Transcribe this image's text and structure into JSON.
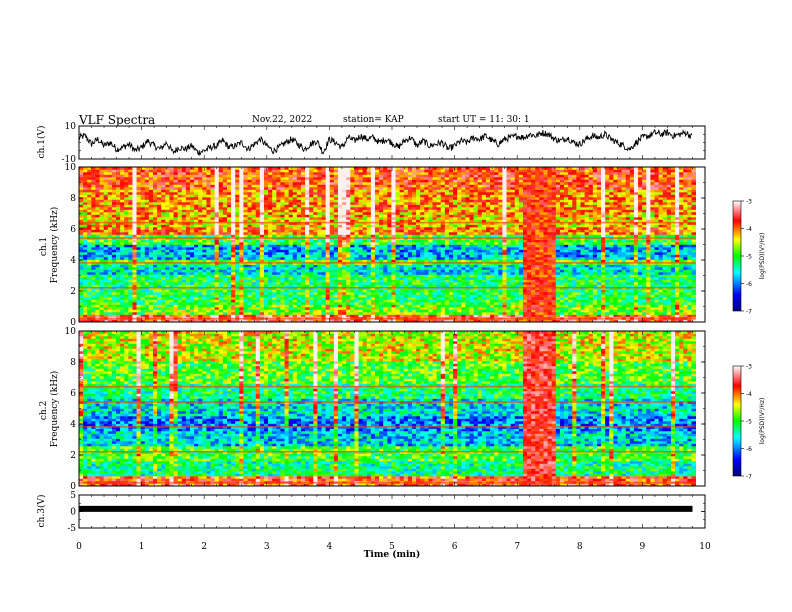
{
  "header": {
    "title": "VLF Spectra",
    "date": "Nov.22, 2022",
    "station": "station= KAP",
    "start_ut": "start  UT =   11: 30: 1"
  },
  "chart_data": [
    {
      "type": "line",
      "panel": "ch1-waveform",
      "ylabel": "ch.1(V)",
      "ylim": [
        -10,
        10
      ],
      "yticks": [
        10,
        -10
      ],
      "xlim": [
        0,
        10
      ],
      "series": [
        {
          "color": "#000000",
          "x": [
            0.0,
            0.1,
            0.2,
            0.3,
            0.4,
            0.5,
            0.6,
            0.7,
            0.8,
            0.9,
            1.0,
            1.1,
            1.2,
            1.3,
            1.4,
            1.5,
            1.6,
            1.7,
            1.8,
            1.9,
            2.0,
            2.1,
            2.2,
            2.3,
            2.4,
            2.5,
            2.6,
            2.7,
            2.8,
            2.9,
            3.0,
            3.1,
            3.2,
            3.3,
            3.4,
            3.5,
            3.6,
            3.7,
            3.8,
            3.9,
            4.0,
            4.1,
            4.2,
            4.3,
            4.4,
            4.5,
            4.6,
            4.7,
            4.8,
            4.9,
            5.0,
            5.1,
            5.2,
            5.3,
            5.4,
            5.5,
            5.6,
            5.7,
            5.8,
            5.9,
            6.0,
            6.1,
            6.2,
            6.3,
            6.4,
            6.5,
            6.6,
            6.7,
            6.8,
            6.9,
            7.0,
            7.1,
            7.2,
            7.3,
            7.4,
            7.5,
            7.6,
            7.7,
            7.8,
            7.9,
            8.0,
            8.1,
            8.2,
            8.3,
            8.4,
            8.5,
            8.6,
            8.7,
            8.8,
            8.9,
            9.0,
            9.1,
            9.2,
            9.3,
            9.4,
            9.5,
            9.6,
            9.7,
            9.8
          ],
          "y": [
            3,
            4,
            -1,
            2,
            -2,
            0,
            -4,
            -3,
            -1,
            -5,
            -3,
            1,
            -2,
            -4,
            0,
            -6,
            -3,
            -4,
            -2,
            -6,
            -5,
            -3,
            -2,
            1,
            -3,
            -2,
            0,
            -4,
            -1,
            2,
            -2,
            -5,
            -3,
            0,
            2,
            -1,
            -4,
            -1,
            1,
            -6,
            2,
            0,
            -3,
            3,
            1,
            4,
            2,
            3,
            0,
            2,
            0,
            -3,
            1,
            3,
            -2,
            1,
            -2,
            -1,
            0,
            -4,
            -2,
            1,
            0,
            3,
            2,
            4,
            1,
            -1,
            2,
            3,
            4,
            3,
            5,
            4,
            6,
            5,
            2,
            1,
            3,
            0,
            -1,
            2,
            4,
            3,
            5,
            2,
            0,
            -2,
            -4,
            0,
            3,
            4,
            6,
            5,
            6,
            4,
            5,
            6,
            3
          ]
        }
      ]
    },
    {
      "type": "heatmap",
      "panel": "ch1-spectrogram",
      "ylabel": "ch.1\nFrequency (kHz)",
      "ylim": [
        0,
        10
      ],
      "yticks": [
        0,
        2,
        4,
        6,
        8,
        10
      ],
      "xlim": [
        0,
        10
      ],
      "colorbar": {
        "label": "log(PSD)(V²/Hz)",
        "range": [
          -7,
          -3
        ],
        "ticks": [
          "-3",
          "-4",
          "-5",
          "-6",
          "-7"
        ],
        "colors": [
          "#000080",
          "#0000ff",
          "#00ffff",
          "#00ff00",
          "#ffff00",
          "#ff0000",
          "#ffffff"
        ]
      },
      "frequency_bands_khz": [
        {
          "from": 0.0,
          "to": 0.4,
          "level": -3.6
        },
        {
          "from": 0.4,
          "to": 1.0,
          "level": -4.8
        },
        {
          "from": 1.0,
          "to": 2.0,
          "level": -5.1
        },
        {
          "from": 2.0,
          "to": 3.0,
          "level": -5.2
        },
        {
          "from": 3.0,
          "to": 3.6,
          "level": -5.6
        },
        {
          "from": 3.6,
          "to": 4.0,
          "level": -4.9
        },
        {
          "from": 4.0,
          "to": 5.0,
          "level": -5.8
        },
        {
          "from": 5.0,
          "to": 5.5,
          "level": -5.0
        },
        {
          "from": 5.5,
          "to": 6.0,
          "level": -4.0
        },
        {
          "from": 6.0,
          "to": 7.0,
          "level": -4.3
        },
        {
          "from": 7.0,
          "to": 8.5,
          "level": -4.1
        },
        {
          "from": 8.5,
          "to": 10.0,
          "level": -3.8
        }
      ],
      "burst_interval_min": [
        7.05,
        7.6
      ],
      "burst_level": -3.8
    },
    {
      "type": "heatmap",
      "panel": "ch2-spectrogram",
      "ylabel": "ch.2\nFrequency (kHz)",
      "ylim": [
        0,
        10
      ],
      "yticks": [
        0,
        2,
        4,
        6,
        8,
        10
      ],
      "xlim": [
        0,
        10
      ],
      "colorbar": {
        "label": "log(PSD)(V²/Hz)",
        "range": [
          -7,
          -3
        ],
        "ticks": [
          "-3",
          "-4",
          "-5",
          "-6",
          "-7"
        ],
        "colors": [
          "#000080",
          "#0000ff",
          "#00ffff",
          "#00ff00",
          "#ffff00",
          "#ff0000",
          "#ffffff"
        ]
      },
      "frequency_bands_khz": [
        {
          "from": 0.0,
          "to": 0.5,
          "level": -3.8
        },
        {
          "from": 0.5,
          "to": 1.5,
          "level": -5.3
        },
        {
          "from": 1.5,
          "to": 2.5,
          "level": -5.0
        },
        {
          "from": 2.5,
          "to": 3.5,
          "level": -5.7
        },
        {
          "from": 3.5,
          "to": 4.5,
          "level": -6.0
        },
        {
          "from": 4.5,
          "to": 5.5,
          "level": -5.6
        },
        {
          "from": 5.5,
          "to": 6.5,
          "level": -5.2
        },
        {
          "from": 6.5,
          "to": 8.0,
          "level": -4.9
        },
        {
          "from": 8.0,
          "to": 10.0,
          "level": -4.5
        }
      ],
      "burst_interval_min": [
        7.05,
        7.6
      ],
      "burst_level": -3.6
    },
    {
      "type": "line",
      "panel": "ch3-waveform",
      "ylabel": "ch.3(V)",
      "ylim": [
        -5,
        5
      ],
      "yticks": [
        5,
        0,
        -5
      ],
      "xlim": [
        0,
        10
      ],
      "series": [
        {
          "color": "#000000",
          "x": [
            0,
            9.8
          ],
          "y": [
            0.8,
            0.8
          ]
        }
      ]
    }
  ],
  "x_axis": {
    "xlabel": "Time (min)",
    "ticks": [
      0,
      1,
      2,
      3,
      4,
      5,
      6,
      7,
      8,
      9,
      10
    ]
  }
}
